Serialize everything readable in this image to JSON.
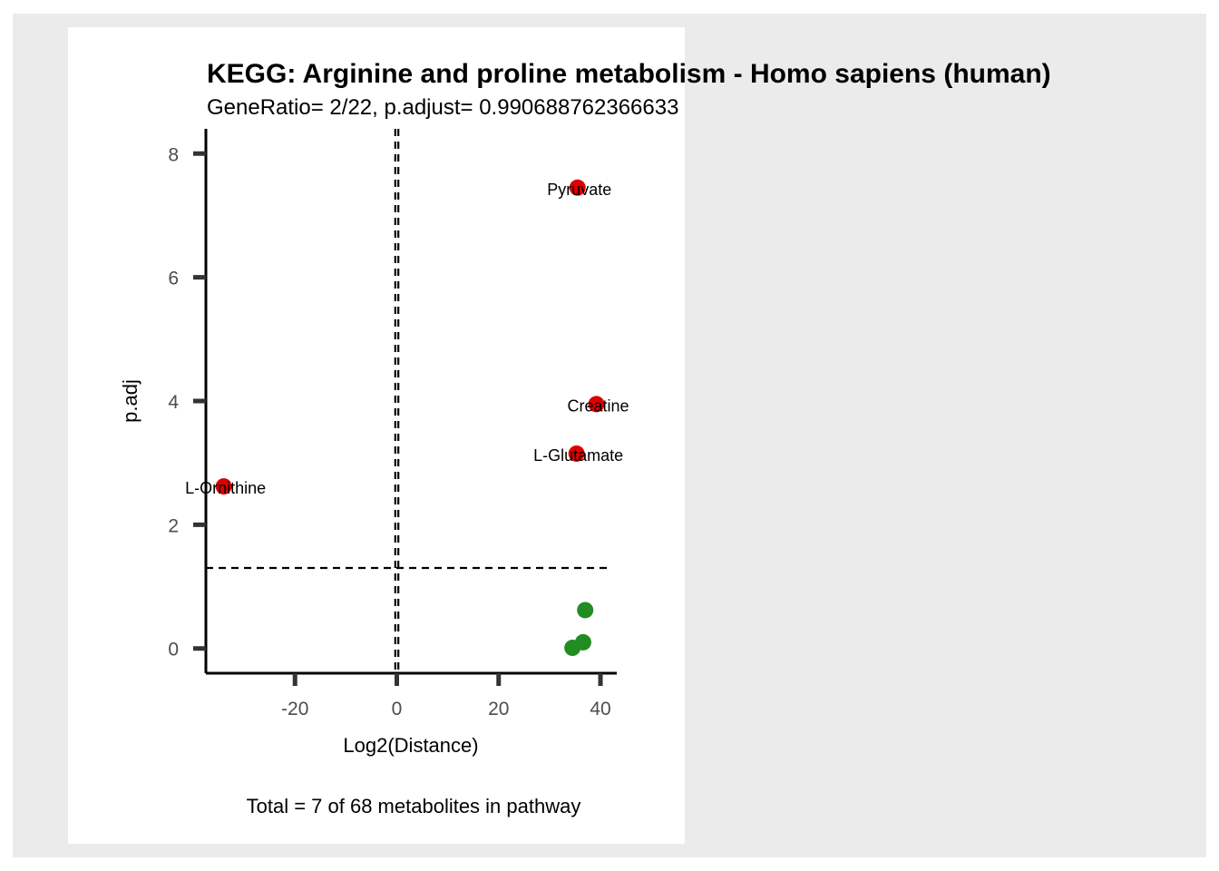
{
  "chart_data": {
    "type": "scatter",
    "title": "KEGG: Arginine and proline metabolism - Homo sapiens (human)",
    "subtitle": "GeneRatio= 2/22, p.adjust= 0.990688762366633",
    "xlabel": "Log2(Distance)",
    "ylabel": "p.adj",
    "caption": "Total = 7 of 68 metabolites in pathway",
    "xlim": [
      -37.5,
      43.2
    ],
    "ylim": [
      -0.4,
      8.4
    ],
    "xticks": [
      -20,
      0,
      20,
      40
    ],
    "yticks": [
      0,
      2,
      4,
      6,
      8
    ],
    "grid": false,
    "threshold_lines": {
      "vertical_x": [
        -0.3,
        0.3
      ],
      "horizontal_y": 1.301
    },
    "colors": {
      "significant": "#dd0000",
      "not_significant": "#228b22",
      "reference_line": "#000000",
      "axis": "#000000",
      "tick": "#333333",
      "background": "#ebebeb",
      "panel": "#ffffff"
    },
    "points": [
      {
        "label": "Pyruvate",
        "x": 35.5,
        "y": 7.45,
        "significant": true
      },
      {
        "label": "Creatine",
        "x": 39.2,
        "y": 3.95,
        "significant": true
      },
      {
        "label": "L-Glutamate",
        "x": 35.3,
        "y": 3.15,
        "significant": true
      },
      {
        "label": "L-Ornithine",
        "x": -34.0,
        "y": 2.62,
        "significant": true
      },
      {
        "label": "",
        "x": 37.0,
        "y": 0.62,
        "significant": false
      },
      {
        "label": "",
        "x": 36.6,
        "y": 0.1,
        "significant": false
      },
      {
        "label": "",
        "x": 34.5,
        "y": 0.01,
        "significant": false
      }
    ]
  }
}
